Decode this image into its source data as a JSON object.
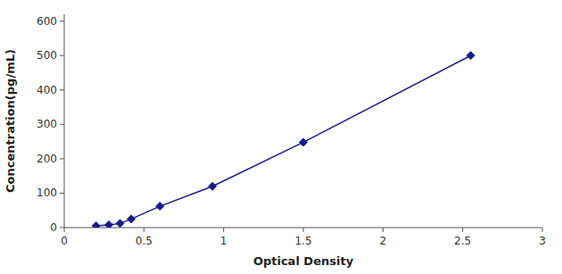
{
  "chart_data": {
    "type": "line",
    "xlabel": "Optical Density",
    "ylabel": "Concentration(pg/mL)",
    "x": [
      0.2,
      0.28,
      0.35,
      0.42,
      0.6,
      0.93,
      1.5,
      2.55
    ],
    "values": [
      5,
      8,
      12,
      25,
      62,
      120,
      248,
      500
    ],
    "color": "#1a1a8c",
    "marker": "diamond",
    "line_style": "solid",
    "xlim": [
      0.0,
      3.0
    ],
    "ylim": [
      0,
      620
    ],
    "xticks": [
      0,
      0.5,
      1,
      1.5,
      2,
      2.5,
      3
    ],
    "yticks": [
      0,
      100,
      200,
      300,
      400,
      500,
      600
    ],
    "grid": false
  }
}
